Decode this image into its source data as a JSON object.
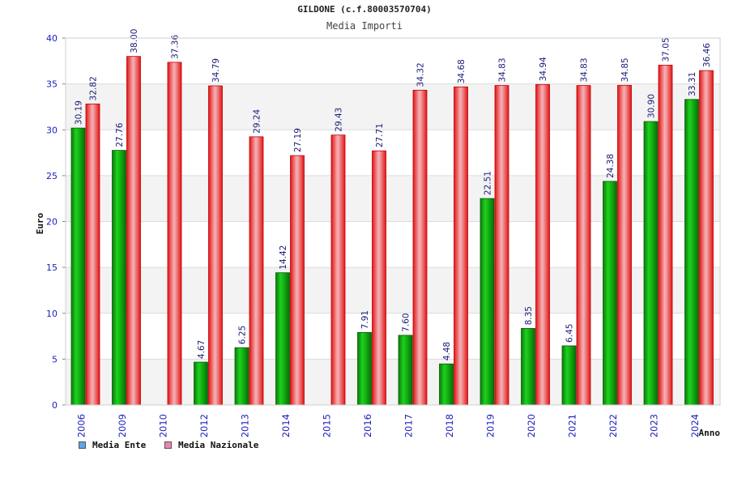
{
  "title": "GILDONE (c.f.80003570704)",
  "subtitle": "Media Importi",
  "colors": {
    "ente": "#1e9a1e",
    "nazionale": "#ec2a2a",
    "axis_text": "#1c1cbe",
    "legend_ente": "#5fa3e8",
    "legend_nazionale": "#e888b0"
  },
  "legend": [
    {
      "label": "Media Ente"
    },
    {
      "label": "Media Nazionale"
    }
  ],
  "chart_data": {
    "type": "bar",
    "title": "GILDONE (c.f.80003570704)",
    "subtitle": "Media Importi",
    "xlabel": "Anno",
    "ylabel": "Euro",
    "ylim": [
      0,
      40
    ],
    "yticks": [
      0,
      5,
      10,
      15,
      20,
      25,
      30,
      35,
      40
    ],
    "categories": [
      "2006",
      "2009",
      "2010",
      "2012",
      "2013",
      "2014",
      "2015",
      "2016",
      "2017",
      "2018",
      "2019",
      "2020",
      "2021",
      "2022",
      "2023",
      "2024"
    ],
    "series": [
      {
        "name": "Media Ente",
        "values": [
          30.19,
          27.76,
          null,
          4.67,
          6.25,
          14.42,
          null,
          7.91,
          7.6,
          4.48,
          22.51,
          8.35,
          6.45,
          24.38,
          30.9,
          33.31
        ],
        "labels": [
          "30.19",
          "27.76",
          null,
          "4.67",
          "6.25",
          "14.42",
          null,
          "7.91",
          "7.60",
          "4.48",
          "22.51",
          "8.35",
          "6.45",
          "24.38",
          "30.90",
          "33.31"
        ]
      },
      {
        "name": "Media Nazionale",
        "values": [
          32.82,
          38.0,
          37.36,
          34.79,
          29.24,
          27.19,
          29.43,
          27.71,
          34.32,
          34.68,
          34.83,
          34.94,
          34.83,
          34.85,
          37.05,
          36.46
        ],
        "labels": [
          "32.82",
          "38.00",
          "37.36",
          "34.79",
          "29.24",
          "27.19",
          "29.43",
          "27.71",
          "34.32",
          "34.68",
          "34.83",
          "34.94",
          "34.83",
          "34.85",
          "37.05",
          "36.46"
        ]
      }
    ],
    "grid": true,
    "legend_position": "bottom-left"
  }
}
